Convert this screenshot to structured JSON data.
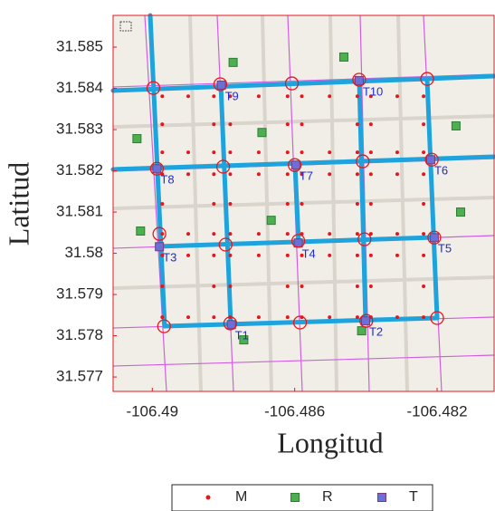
{
  "chart_data": {
    "type": "scatter",
    "xlabel": "Longitud",
    "ylabel": "Latitud",
    "xlim": [
      -106.4911,
      -106.4804
    ],
    "ylim": [
      31.57665,
      31.58577
    ],
    "xticks": [
      -106.49,
      -106.486,
      -106.482
    ],
    "yticks": [
      31.577,
      31.578,
      31.579,
      31.58,
      31.581,
      31.582,
      31.583,
      31.584,
      31.585
    ],
    "legend": "bottom",
    "series": [
      {
        "name": "M",
        "color": "#e8161b",
        "marker": "dot",
        "x": [
          -106.48972,
          -106.48899,
          -106.48827,
          -106.48827,
          -106.48827,
          -106.48899,
          -106.48972,
          -106.48972,
          -106.48781,
          -106.48701,
          -106.4862,
          -106.4862,
          -106.4862,
          -106.48701,
          -106.48781,
          -106.48781,
          -106.4858,
          -106.48502,
          -106.48424,
          -106.48424,
          -106.48424,
          -106.48502,
          -106.4858,
          -106.4858,
          -106.48386,
          -106.48312,
          -106.48238,
          -106.48238,
          -106.48238,
          -106.48312,
          -106.48386,
          -106.48386,
          -106.48972,
          -106.48899,
          -106.48827,
          -106.48827,
          -106.48827,
          -106.48899,
          -106.48972,
          -106.48972,
          -106.48781,
          -106.48701,
          -106.4862,
          -106.4862,
          -106.4862,
          -106.48701,
          -106.48781,
          -106.48781,
          -106.4858,
          -106.48502,
          -106.48424,
          -106.48424,
          -106.48424,
          -106.48502,
          -106.4858,
          -106.4858,
          -106.48386,
          -106.48312,
          -106.48238,
          -106.48238,
          -106.48238,
          -106.48312,
          -106.48386,
          -106.48386,
          -106.48972,
          -106.48899,
          -106.48827,
          -106.48827,
          -106.48827,
          -106.48899,
          -106.48972,
          -106.48972,
          -106.48781,
          -106.48701,
          -106.4862,
          -106.4862,
          -106.4862,
          -106.48701,
          -106.48781,
          -106.48781,
          -106.4858,
          -106.48502,
          -106.48424,
          -106.48424,
          -106.48424,
          -106.48502,
          -106.4858,
          -106.4858,
          -106.48386,
          -106.48312,
          -106.48238,
          -106.48238,
          -106.48238,
          -106.48312,
          -106.48386,
          -106.48386
        ],
        "values": [
          31.58381,
          31.58381,
          31.58381,
          31.58313,
          31.58245,
          31.58245,
          31.58245,
          31.58313,
          31.58381,
          31.58381,
          31.58381,
          31.58313,
          31.58245,
          31.58245,
          31.58245,
          31.58313,
          31.58381,
          31.58381,
          31.58381,
          31.58313,
          31.58245,
          31.58245,
          31.58245,
          31.58313,
          31.58381,
          31.58381,
          31.58381,
          31.58313,
          31.58245,
          31.58245,
          31.58245,
          31.58313,
          31.58192,
          31.58192,
          31.58192,
          31.5812,
          31.58047,
          31.58047,
          31.58047,
          31.5812,
          31.58192,
          31.58192,
          31.58192,
          31.5812,
          31.58047,
          31.58047,
          31.58047,
          31.5812,
          31.58192,
          31.58192,
          31.58192,
          31.5812,
          31.58047,
          31.58047,
          31.58047,
          31.5812,
          31.58192,
          31.58192,
          31.58192,
          31.5812,
          31.58047,
          31.58047,
          31.58047,
          31.5812,
          31.57995,
          31.57995,
          31.57995,
          31.5792,
          31.57845,
          31.57845,
          31.57845,
          31.5792,
          31.57995,
          31.57995,
          31.57995,
          31.5792,
          31.57845,
          31.57845,
          31.57845,
          31.5792,
          31.57995,
          31.57995,
          31.57995,
          31.5792,
          31.57845,
          31.57845,
          31.57845,
          31.5792,
          31.57995,
          31.57995,
          31.57995,
          31.5792,
          31.57845,
          31.57845,
          31.57845,
          31.5792
        ]
      },
      {
        "name": "R",
        "color": "#4caf50",
        "marker": "square",
        "x": [
          -106.48773,
          -106.48462,
          -106.49043,
          -106.48692,
          -106.48147,
          -106.48666,
          -106.49033,
          -106.48134,
          -106.48743,
          -106.48412
        ],
        "values": [
          31.58463,
          31.58476,
          31.58278,
          31.58293,
          31.58309,
          31.5808,
          31.58054,
          31.581,
          31.5779,
          31.57812
        ]
      },
      {
        "name": "T",
        "color": "#6b6fd6",
        "marker": "square",
        "x": [
          -106.48778,
          -106.48401,
          -106.4898,
          -106.4859,
          -106.48208,
          -106.48218,
          -106.48597,
          -106.48987,
          -106.48806,
          -106.48419
        ],
        "values": [
          31.57827,
          31.57836,
          31.58016,
          31.58025,
          31.58038,
          31.58227,
          31.58214,
          31.58205,
          31.58408,
          31.58419
        ],
        "point_labels": [
          "T1",
          "T2",
          "T3",
          "T4",
          "T5",
          "T6",
          "T7",
          "T8",
          "T9",
          "T10"
        ]
      },
      {
        "color": "#e8161b",
        "marker": "circle",
        "x": [
          -106.48997,
          -106.48809,
          -106.48608,
          -106.48419,
          -106.48228,
          -106.48987,
          -106.48801,
          -106.486,
          -106.48409,
          -106.48215,
          -106.4898,
          -106.48794,
          -106.4859,
          -106.48404,
          -106.48208,
          -106.48967,
          -106.48781,
          -106.48585,
          -106.48399,
          -106.482
        ],
        "values": [
          31.58401,
          31.5841,
          31.58412,
          31.58421,
          31.58423,
          31.58205,
          31.5821,
          31.58214,
          31.58223,
          31.58227,
          31.58047,
          31.58021,
          31.5803,
          31.58034,
          31.58038,
          31.57823,
          31.5783,
          31.57832,
          31.57836,
          31.57843
        ]
      }
    ]
  }
}
